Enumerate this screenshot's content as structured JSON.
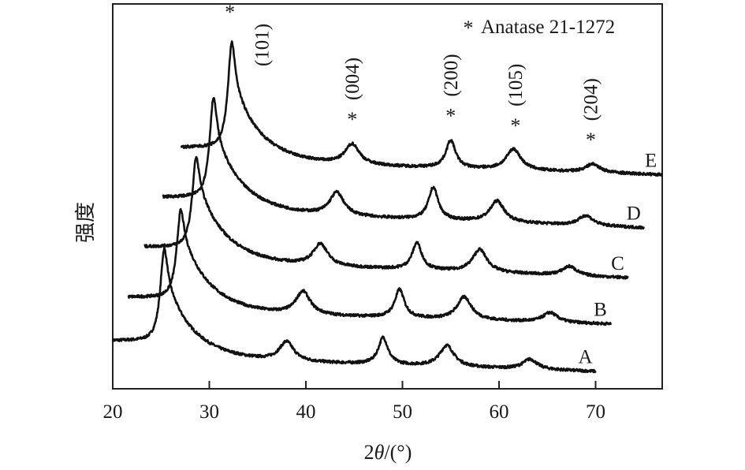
{
  "chart_data": {
    "type": "line",
    "title": "",
    "xlabel_prefix": "2",
    "xlabel_theta": "θ",
    "xlabel_suffix": "/(°)",
    "ylabel": "强度",
    "xlim": [
      20,
      77
    ],
    "ylim": [
      0,
      100
    ],
    "x_ticks": [
      "20",
      "30",
      "40",
      "50",
      "60",
      "70"
    ],
    "y_ticks": [],
    "grid": false,
    "legend": {
      "marker": "*",
      "text": "Anatase 21-1272",
      "placement": "top-right"
    },
    "series": [
      {
        "name": "A",
        "range": [
          20,
          70
        ],
        "left_level": 12.5,
        "main_peak": {
          "pos": 25.3,
          "height": 16,
          "hwhm": 0.45
        },
        "tail": {
          "amp": 20,
          "decay": 3
        },
        "baseline": [
          8,
          4.5
        ],
        "peaks": [
          {
            "pos": 38.0,
            "height": 5,
            "hwhm": 0.9
          },
          {
            "pos": 48.0,
            "height": 7,
            "hwhm": 0.6
          },
          {
            "pos": 54.6,
            "height": 5.5,
            "hwhm": 0.9
          },
          {
            "pos": 63.2,
            "height": 2.6,
            "hwhm": 0.9
          }
        ]
      },
      {
        "name": "B",
        "range": [
          21.6,
          71.6
        ],
        "left_level": 23.8,
        "main_peak": {
          "pos": 27.0,
          "height": 14.3,
          "hwhm": 0.45
        },
        "tail": {
          "amp": 20,
          "decay": 3
        },
        "baseline": [
          20,
          16.8
        ],
        "peaks": [
          {
            "pos": 39.7,
            "height": 6,
            "hwhm": 0.9
          },
          {
            "pos": 49.7,
            "height": 7.3,
            "hwhm": 0.6
          },
          {
            "pos": 56.4,
            "height": 5.9,
            "hwhm": 0.9
          },
          {
            "pos": 65.3,
            "height": 2.5,
            "hwhm": 0.9
          }
        ]
      },
      {
        "name": "C",
        "range": [
          23.3,
          73.4
        ],
        "left_level": 36.9,
        "main_peak": {
          "pos": 28.6,
          "height": 15,
          "hwhm": 0.45
        },
        "tail": {
          "amp": 20,
          "decay": 3
        },
        "baseline": [
          33,
          28.8
        ],
        "peaks": [
          {
            "pos": 41.5,
            "height": 5.7,
            "hwhm": 0.9
          },
          {
            "pos": 51.5,
            "height": 7,
            "hwhm": 0.6
          },
          {
            "pos": 58.0,
            "height": 5.9,
            "hwhm": 0.9
          },
          {
            "pos": 67.3,
            "height": 2.4,
            "hwhm": 0.9
          }
        ]
      },
      {
        "name": "D",
        "range": [
          25.2,
          75.0
        ],
        "left_level": 49.8,
        "main_peak": {
          "pos": 30.4,
          "height": 17.6,
          "hwhm": 0.45
        },
        "tail": {
          "amp": 20,
          "decay": 3
        },
        "baseline": [
          46,
          41.8
        ],
        "peaks": [
          {
            "pos": 43.2,
            "height": 6,
            "hwhm": 0.9
          },
          {
            "pos": 53.2,
            "height": 8.4,
            "hwhm": 0.6
          },
          {
            "pos": 59.8,
            "height": 5.5,
            "hwhm": 0.9
          },
          {
            "pos": 69.0,
            "height": 2.6,
            "hwhm": 0.9
          }
        ]
      },
      {
        "name": "E",
        "range": [
          27.1,
          76.9
        ],
        "left_level": 62.7,
        "main_peak": {
          "pos": 32.3,
          "height": 19,
          "hwhm": 0.45
        },
        "tail": {
          "amp": 20,
          "decay": 3
        },
        "baseline": [
          59,
          55.6
        ],
        "peaks": [
          {
            "pos": 44.8,
            "height": 5.3,
            "hwhm": 0.9
          },
          {
            "pos": 55.0,
            "height": 7.2,
            "hwhm": 0.6
          },
          {
            "pos": 61.5,
            "height": 5.5,
            "hwhm": 0.9
          },
          {
            "pos": 69.7,
            "height": 2.2,
            "hwhm": 0.9
          }
        ]
      }
    ],
    "annotations": [
      {
        "marker": "*",
        "hkl": "(101)",
        "pos": 32.3
      },
      {
        "marker": "*",
        "hkl": "(004)",
        "pos": 44.8
      },
      {
        "marker": "*",
        "hkl": "(200)",
        "pos": 55.0
      },
      {
        "marker": "*",
        "hkl": "(105)",
        "pos": 61.7
      },
      {
        "marker": "*",
        "hkl": "(204)",
        "pos": 69.5
      }
    ],
    "line_color": "#111111"
  }
}
